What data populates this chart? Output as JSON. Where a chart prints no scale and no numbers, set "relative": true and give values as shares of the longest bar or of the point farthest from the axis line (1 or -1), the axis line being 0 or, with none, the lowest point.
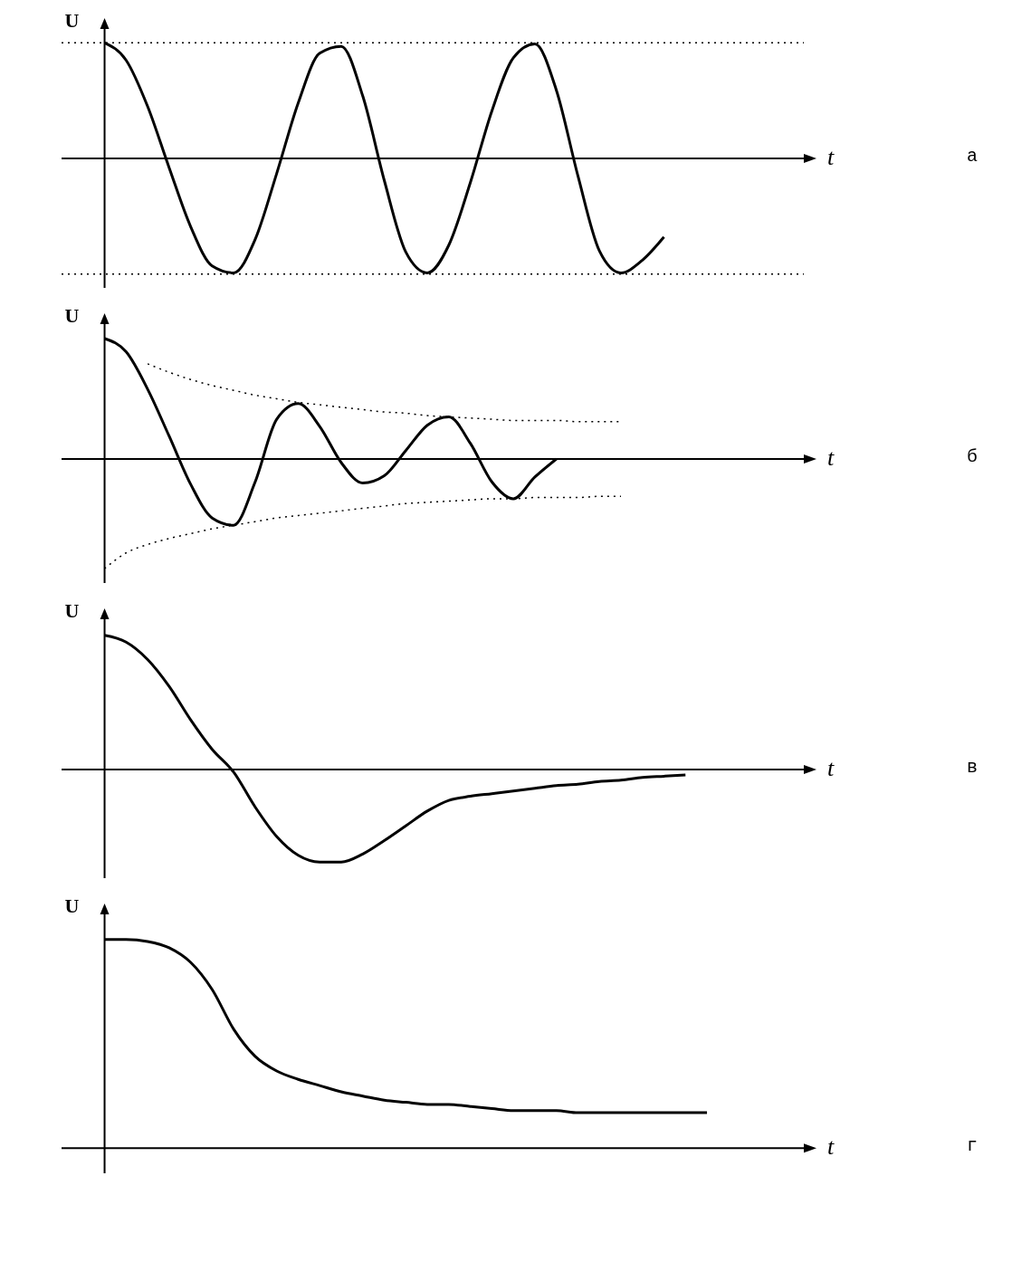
{
  "chart_data": [
    {
      "type": "line",
      "relative": true,
      "xlabel": "t",
      "ylabel": "U",
      "annotations": [
        "а"
      ],
      "legend": false,
      "grid": false,
      "marker": "none",
      "categories": [
        null,
        null,
        null,
        null,
        null,
        null,
        null,
        null,
        null,
        null,
        null,
        null,
        null,
        null,
        null,
        null,
        null,
        null,
        null,
        null,
        null,
        null,
        null,
        null,
        null,
        null,
        null,
        null,
        null,
        null,
        null,
        null,
        null
      ],
      "series": [
        {
          "color": "#000000",
          "line_style": "solid",
          "values": [
            1,
            0.85,
            0.45,
            -0.08,
            -0.59,
            -0.93,
            -0.99,
            -0.7,
            -0.13,
            0.48,
            0.91,
            0.97,
            0.54,
            -0.19,
            -0.81,
            -0.99,
            -0.75,
            -0.21,
            0.41,
            0.87,
            0.99,
            0.59,
            -0.15,
            -0.8,
            -0.99,
            -0.88,
            -0.68,
            null,
            null,
            null,
            null,
            null,
            null
          ]
        }
      ],
      "ref_lines": [
        {
          "axis": "y",
          "value": 1,
          "color": "#000000",
          "line_style": "dotted"
        },
        {
          "axis": "y",
          "value": -1,
          "color": "#000000",
          "line_style": "dotted"
        }
      ]
    },
    {
      "type": "line",
      "relative": true,
      "xlabel": "t",
      "ylabel": "U",
      "annotations": [
        "б"
      ],
      "legend": false,
      "grid": false,
      "marker": "none",
      "categories": [
        null,
        null,
        null,
        null,
        null,
        null,
        null,
        null,
        null,
        null,
        null,
        null,
        null,
        null,
        null,
        null,
        null,
        null,
        null,
        null,
        null,
        null,
        null,
        null,
        null,
        null,
        null,
        null,
        null,
        null,
        null,
        null,
        null
      ],
      "series": [
        {
          "color": "#000000",
          "line_style": "solid",
          "values": [
            1,
            0.89,
            0.58,
            0.19,
            -0.21,
            -0.49,
            -0.55,
            -0.19,
            0.33,
            0.46,
            0.27,
            -0.03,
            -0.2,
            -0.14,
            0.07,
            0.28,
            0.35,
            0.13,
            -0.19,
            -0.33,
            -0.15,
            0,
            null,
            null,
            null,
            null,
            null,
            null,
            null,
            null,
            null,
            null,
            null
          ]
        },
        {
          "color": "#000000",
          "line_style": "dotted",
          "values": [
            null,
            null,
            0.79,
            0.72,
            0.66,
            0.61,
            0.57,
            0.53,
            0.5,
            0.47,
            0.45,
            0.43,
            0.41,
            0.39,
            0.38,
            0.36,
            0.35,
            0.34,
            0.33,
            0.32,
            0.32,
            0.32,
            0.31,
            0.31,
            0.31,
            null,
            null,
            null,
            null,
            null,
            null,
            null,
            null
          ]
        },
        {
          "color": "#000000",
          "line_style": "dotted",
          "values": [
            -0.91,
            -0.78,
            -0.71,
            -0.66,
            -0.62,
            -0.58,
            -0.55,
            -0.52,
            -0.49,
            -0.47,
            -0.45,
            -0.43,
            -0.41,
            -0.39,
            -0.37,
            -0.36,
            -0.35,
            -0.34,
            -0.33,
            -0.33,
            -0.32,
            -0.32,
            -0.32,
            -0.31,
            -0.31,
            null,
            null,
            null,
            null,
            null,
            null,
            null,
            null
          ]
        }
      ]
    },
    {
      "type": "line",
      "relative": true,
      "xlabel": "t",
      "ylabel": "U",
      "annotations": [
        "в"
      ],
      "legend": false,
      "grid": false,
      "marker": "none",
      "categories": [
        null,
        null,
        null,
        null,
        null,
        null,
        null,
        null,
        null,
        null,
        null,
        null,
        null,
        null,
        null,
        null,
        null,
        null,
        null,
        null,
        null,
        null,
        null,
        null,
        null,
        null,
        null,
        null,
        null,
        null,
        null,
        null,
        null
      ],
      "series": [
        {
          "color": "#000000",
          "line_style": "solid",
          "values": [
            1,
            0.95,
            0.82,
            0.62,
            0.37,
            0.15,
            -0.02,
            -0.28,
            -0.5,
            -0.64,
            -0.69,
            -0.69,
            -0.63,
            -0.53,
            -0.42,
            -0.31,
            -0.23,
            -0.2,
            -0.18,
            -0.16,
            -0.14,
            -0.12,
            -0.11,
            -0.09,
            -0.08,
            -0.06,
            -0.05,
            -0.04,
            null,
            null,
            null,
            null,
            null
          ]
        }
      ]
    },
    {
      "type": "line",
      "relative": true,
      "xlabel": "t",
      "ylabel": "U",
      "annotations": [
        "г"
      ],
      "legend": false,
      "grid": false,
      "marker": "none",
      "categories": [
        null,
        null,
        null,
        null,
        null,
        null,
        null,
        null,
        null,
        null,
        null,
        null,
        null,
        null,
        null,
        null,
        null,
        null,
        null,
        null,
        null,
        null,
        null,
        null,
        null,
        null,
        null,
        null,
        null,
        null,
        null,
        null,
        null
      ],
      "series": [
        {
          "color": "#000000",
          "line_style": "solid",
          "values": [
            1,
            1,
            0.99,
            0.96,
            0.89,
            0.76,
            0.57,
            0.44,
            0.37,
            0.33,
            0.3,
            0.27,
            0.25,
            0.23,
            0.22,
            0.21,
            0.21,
            0.2,
            0.19,
            0.18,
            0.18,
            0.18,
            0.17,
            0.17,
            0.17,
            0.17,
            0.17,
            0.17,
            0.17,
            null,
            null,
            null,
            null
          ]
        }
      ]
    }
  ]
}
